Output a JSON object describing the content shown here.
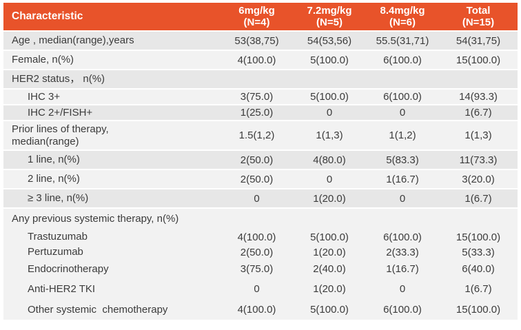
{
  "header": {
    "characteristic": "Characteristic",
    "groups": [
      {
        "dose": "6mg/kg",
        "n": "(N=4)"
      },
      {
        "dose": "7.2mg/kg",
        "n": "(N=5)"
      },
      {
        "dose": "8.4mg/kg",
        "n": "(N=6)"
      },
      {
        "dose": "Total",
        "n": "(N=15)"
      }
    ]
  },
  "rows": [
    {
      "label": "Age , median(range),years",
      "values": [
        "53(38,75)",
        "54(53,56)",
        "55.5(31,71)",
        "54(31,75)"
      ]
    },
    {
      "label": "Female, n(%)",
      "values": [
        "4(100.0)",
        "5(100.0)",
        "6(100.0)",
        "15(100.0)"
      ]
    },
    {
      "label": "HER2 status， n(%)",
      "values": [
        "",
        "",
        "",
        ""
      ]
    },
    {
      "label": "IHC 3+",
      "values": [
        "3(75.0)",
        "5(100.0)",
        "6(100.0)",
        "14(93.3)"
      ]
    },
    {
      "label": "IHC 2+/FISH+",
      "values": [
        "1(25.0)",
        "0",
        "0",
        "1(6.7)"
      ]
    },
    {
      "label": "Prior lines of therapy,\nmedian(range)",
      "values": [
        "1.5(1,2)",
        "1(1,3)",
        "1(1,2)",
        "1(1,3)"
      ]
    },
    {
      "label": "1 line, n(%)",
      "values": [
        "2(50.0)",
        "4(80.0)",
        "5(83.3)",
        "11(73.3)"
      ]
    },
    {
      "label": "2 line, n(%)",
      "values": [
        "2(50.0)",
        "0",
        "1(16.7)",
        "3(20.0)"
      ]
    },
    {
      "label": "≥ 3 line, n(%)",
      "values": [
        "0",
        "1(20.0)",
        "0",
        "1(6.7)"
      ]
    },
    {
      "label": "Any previous systemic therapy, n(%)",
      "values": [
        "",
        "",
        "",
        ""
      ]
    },
    {
      "label": "Trastuzumab",
      "values": [
        "4(100.0)",
        "5(100.0)",
        "6(100.0)",
        "15(100.0)"
      ]
    },
    {
      "label": "Pertuzumab",
      "values": [
        "2(50.0)",
        "1(20.0)",
        "2(33.3)",
        "5(33.3)"
      ]
    },
    {
      "label": "Endocrinotherapy",
      "values": [
        "3(75.0)",
        "2(40.0)",
        "1(16.7)",
        "6(40.0)"
      ]
    },
    {
      "label": "Anti-HER2 TKI",
      "values": [
        "0",
        "1(20.0)",
        "0",
        "1(6.7)"
      ]
    },
    {
      "label": "Other systemic  chemotherapy",
      "values": [
        "4(100.0)",
        "5(100.0)",
        "6(100.0)",
        "15(100.0)"
      ]
    }
  ],
  "colors": {
    "header_bg": "#E8532A",
    "header_text": "#FFFFFF",
    "band_dark": "#E7E7E7",
    "band_light": "#F2F2F2",
    "body_text": "#3B3B3B",
    "divider": "#FFFFFF"
  },
  "chart_data": {
    "type": "table",
    "columns": [
      "Characteristic",
      "6mg/kg (N=4)",
      "7.2mg/kg (N=5)",
      "8.4mg/kg (N=6)",
      "Total (N=15)"
    ],
    "rows": [
      [
        "Age , median(range),years",
        "53(38,75)",
        "54(53,56)",
        "55.5(31,71)",
        "54(31,75)"
      ],
      [
        "Female, n(%)",
        "4(100.0)",
        "5(100.0)",
        "6(100.0)",
        "15(100.0)"
      ],
      [
        "HER2 status， n(%)",
        "",
        "",
        "",
        ""
      ],
      [
        "IHC 3+",
        "3(75.0)",
        "5(100.0)",
        "6(100.0)",
        "14(93.3)"
      ],
      [
        "IHC 2+/FISH+",
        "1(25.0)",
        "0",
        "0",
        "1(6.7)"
      ],
      [
        "Prior lines of therapy, median(range)",
        "1.5(1,2)",
        "1(1,3)",
        "1(1,2)",
        "1(1,3)"
      ],
      [
        "1 line, n(%)",
        "2(50.0)",
        "4(80.0)",
        "5(83.3)",
        "11(73.3)"
      ],
      [
        "2 line, n(%)",
        "2(50.0)",
        "0",
        "1(16.7)",
        "3(20.0)"
      ],
      [
        "≥ 3 line, n(%)",
        "0",
        "1(20.0)",
        "0",
        "1(6.7)"
      ],
      [
        "Any previous systemic therapy, n(%)",
        "",
        "",
        "",
        ""
      ],
      [
        "Trastuzumab",
        "4(100.0)",
        "5(100.0)",
        "6(100.0)",
        "15(100.0)"
      ],
      [
        "Pertuzumab",
        "2(50.0)",
        "1(20.0)",
        "2(33.3)",
        "5(33.3)"
      ],
      [
        "Endocrinotherapy",
        "3(75.0)",
        "2(40.0)",
        "1(16.7)",
        "6(40.0)"
      ],
      [
        "Anti-HER2 TKI",
        "0",
        "1(20.0)",
        "0",
        "1(6.7)"
      ],
      [
        "Other systemic  chemotherapy",
        "4(100.0)",
        "5(100.0)",
        "6(100.0)",
        "15(100.0)"
      ]
    ]
  }
}
